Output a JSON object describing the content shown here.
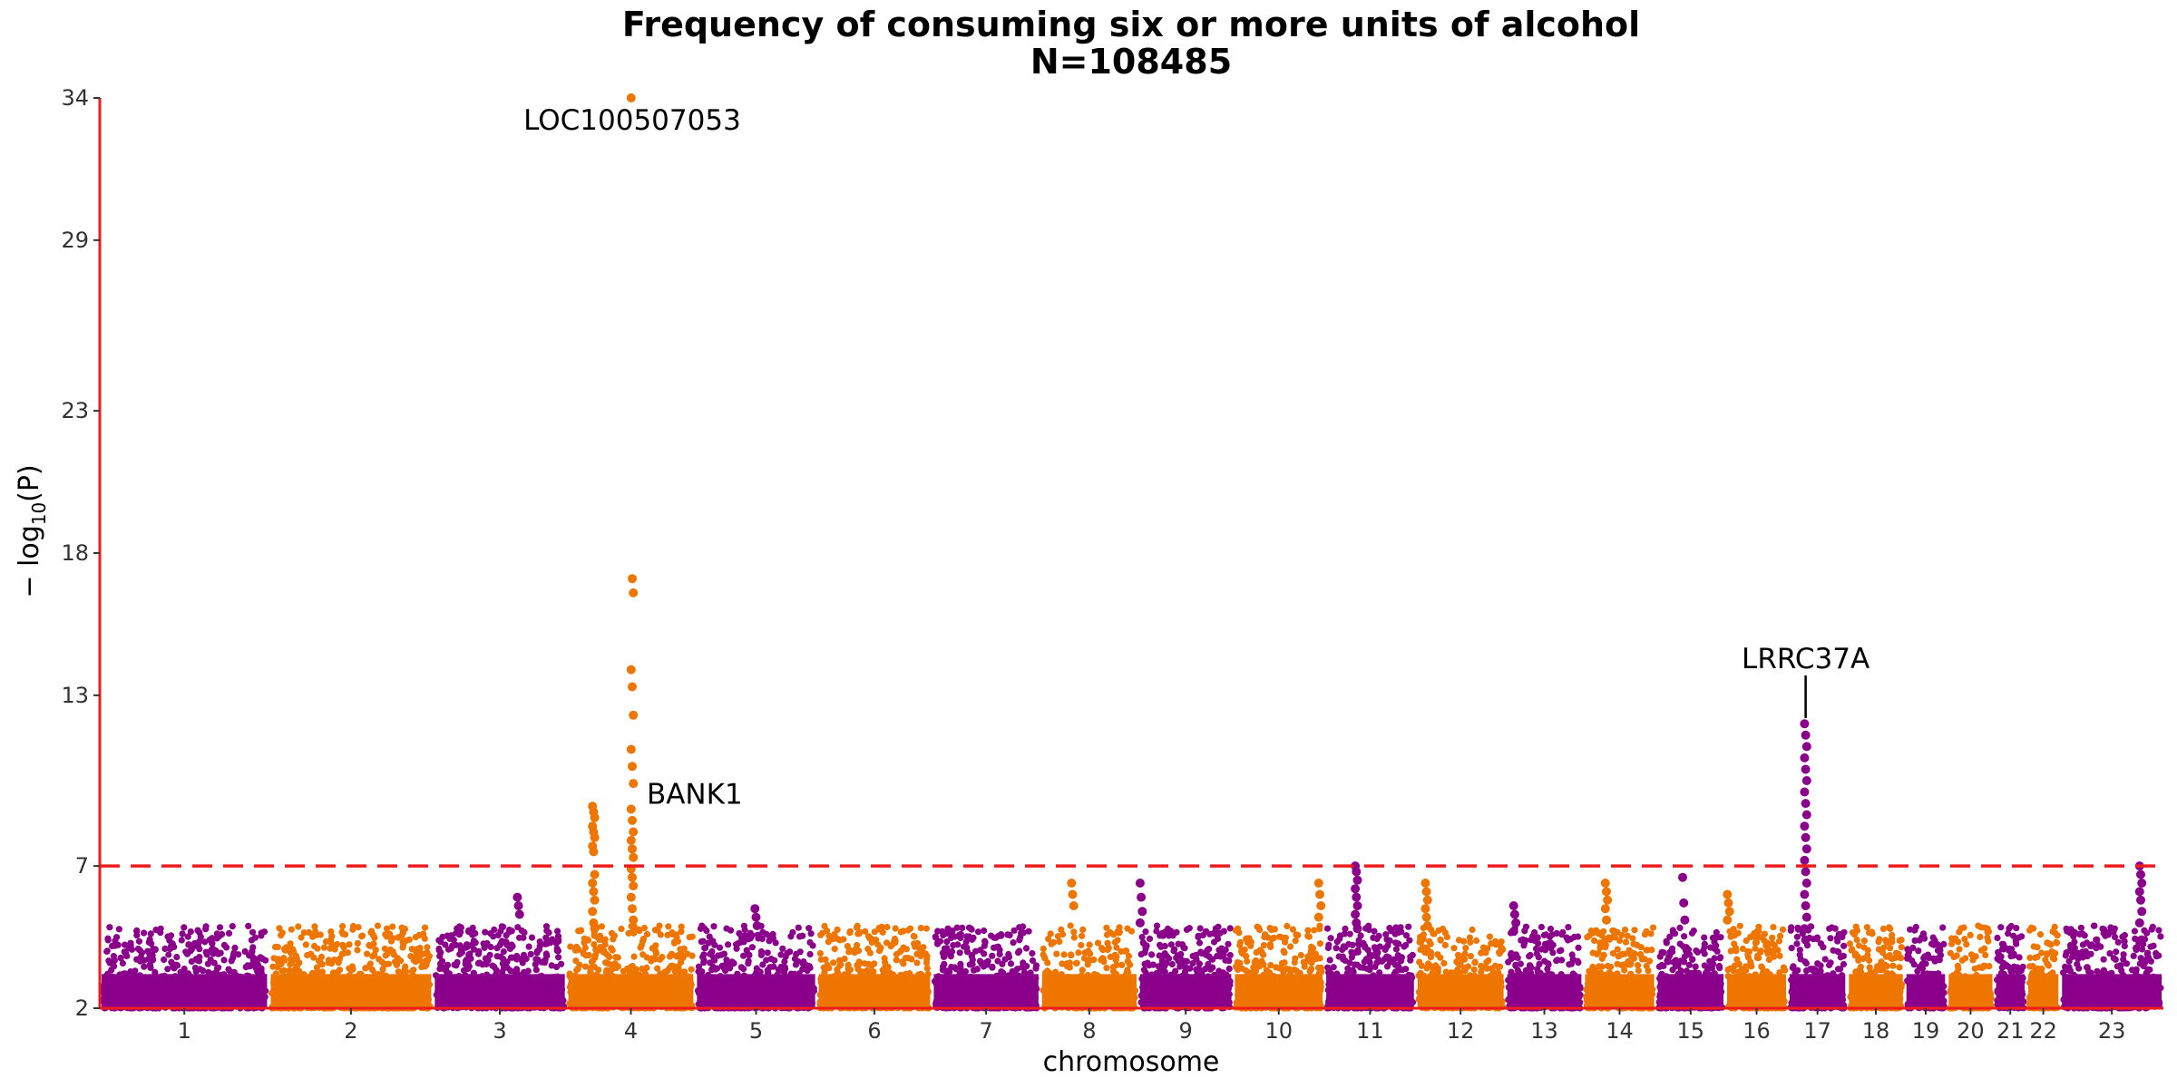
{
  "chart_data": {
    "type": "scatter",
    "subtype": "manhattan",
    "title": "Frequency of consuming six or more units of alcohol",
    "subtitle": "N=108485",
    "xlabel": "chromosome",
    "ylabel_prefix": "− log",
    "ylabel_sub": "10",
    "ylabel_suffix": "(P)",
    "ylim": [
      2,
      34
    ],
    "yticks": [
      2,
      7,
      13,
      18,
      23,
      29,
      34
    ],
    "threshold": 7,
    "grid": false,
    "colors": {
      "odd": "#8b008b",
      "even": "#ee7600",
      "threshold": "#ee1c1c",
      "axis": "#ee1c1c",
      "annotation": "#000000"
    },
    "chromosomes": [
      {
        "label": "1",
        "start": 0,
        "end": 1.0
      },
      {
        "label": "2",
        "start": 1.0,
        "end": 1.97
      },
      {
        "label": "3",
        "start": 1.97,
        "end": 2.76
      },
      {
        "label": "4",
        "start": 2.76,
        "end": 3.52
      },
      {
        "label": "5",
        "start": 3.52,
        "end": 4.24
      },
      {
        "label": "6",
        "start": 4.24,
        "end": 4.92
      },
      {
        "label": "7",
        "start": 4.92,
        "end": 5.56
      },
      {
        "label": "8",
        "start": 5.56,
        "end": 6.14
      },
      {
        "label": "9",
        "start": 6.14,
        "end": 6.7
      },
      {
        "label": "10",
        "start": 6.7,
        "end": 7.24
      },
      {
        "label": "11",
        "start": 7.24,
        "end": 7.78
      },
      {
        "label": "12",
        "start": 7.78,
        "end": 8.31
      },
      {
        "label": "13",
        "start": 8.31,
        "end": 8.77
      },
      {
        "label": "14",
        "start": 8.77,
        "end": 9.2
      },
      {
        "label": "15",
        "start": 9.2,
        "end": 9.61
      },
      {
        "label": "16",
        "start": 9.61,
        "end": 9.98
      },
      {
        "label": "17",
        "start": 9.98,
        "end": 10.33
      },
      {
        "label": "18",
        "start": 10.33,
        "end": 10.67
      },
      {
        "label": "19",
        "start": 10.67,
        "end": 10.92
      },
      {
        "label": "20",
        "start": 10.92,
        "end": 11.2
      },
      {
        "label": "21",
        "start": 11.2,
        "end": 11.39
      },
      {
        "label": "22",
        "start": 11.39,
        "end": 11.59
      },
      {
        "label": "23",
        "start": 11.59,
        "end": 12.2
      }
    ],
    "peaks": [
      {
        "chr": "4",
        "pos_frac": 0.51,
        "values": [
          34,
          17.1,
          16.6,
          13.9,
          13.3,
          12.3,
          11.1,
          10.5,
          9.9,
          9.0,
          8.6,
          8.2,
          7.9,
          7.6,
          7.3,
          6.9,
          6.6,
          6.3,
          5.9,
          5.5,
          5.1
        ]
      },
      {
        "chr": "4",
        "pos_frac": 0.21,
        "values": [
          9.1,
          8.9,
          8.7,
          8.4,
          8.2,
          8.0,
          7.7,
          7.5,
          6.7,
          6.4,
          6.1,
          5.8,
          5.4,
          5.0,
          4.8
        ]
      },
      {
        "chr": "17",
        "pos_frac": 0.3,
        "values": [
          12.0,
          11.6,
          11.2,
          10.8,
          10.4,
          10.0,
          9.6,
          9.2,
          8.8,
          8.4,
          8.0,
          7.6,
          7.2,
          6.8,
          6.4,
          6.0,
          5.6,
          5.2,
          4.8,
          4.4
        ]
      },
      {
        "chr": "11",
        "pos_frac": 0.35,
        "values": [
          7.0,
          6.8,
          6.5,
          6.2,
          5.9,
          5.6,
          5.3,
          5.0,
          4.8
        ]
      },
      {
        "chr": "12",
        "pos_frac": 0.12,
        "values": [
          6.4,
          6.1,
          5.8,
          5.5,
          5.2,
          4.9
        ]
      },
      {
        "chr": "23",
        "pos_frac": 0.78,
        "values": [
          7.0,
          6.7,
          6.4,
          6.1,
          5.8,
          5.4,
          5.0
        ]
      },
      {
        "chr": "16",
        "pos_frac": 0.05,
        "values": [
          6.0,
          5.7,
          5.4,
          5.1
        ]
      },
      {
        "chr": "14",
        "pos_frac": 0.32,
        "values": [
          6.4,
          6.1,
          5.8,
          5.5,
          5.1
        ]
      },
      {
        "chr": "13",
        "pos_frac": 0.12,
        "values": [
          5.6,
          5.3,
          5.0,
          4.7
        ]
      },
      {
        "chr": "10",
        "pos_frac": 0.95,
        "values": [
          6.4,
          6.0,
          5.6,
          5.2
        ]
      },
      {
        "chr": "9",
        "pos_frac": 0.03,
        "values": [
          6.4,
          5.9,
          5.4,
          5.0
        ]
      },
      {
        "chr": "8",
        "pos_frac": 0.33,
        "values": [
          6.4,
          6.0,
          5.6
        ]
      },
      {
        "chr": "3",
        "pos_frac": 0.64,
        "values": [
          5.9,
          5.6,
          5.3
        ]
      },
      {
        "chr": "5",
        "pos_frac": 0.5,
        "values": [
          5.5,
          5.2,
          4.9
        ]
      },
      {
        "chr": "15",
        "pos_frac": 0.4,
        "values": [
          6.6,
          5.7,
          5.1
        ]
      }
    ],
    "annotations": [
      {
        "text": "LOC100507053",
        "chr": "4",
        "pos_frac": 0.51,
        "y": 34,
        "anchor": "middle",
        "placement": "below",
        "leader": false
      },
      {
        "text": "BANK1",
        "chr": "4",
        "pos_frac": 0.51,
        "y": 9.5,
        "anchor": "start",
        "placement": "right",
        "leader": false
      },
      {
        "text": "LRRC37A",
        "chr": "17",
        "pos_frac": 0.3,
        "y": 12.2,
        "anchor": "middle",
        "placement": "above",
        "leader": true
      }
    ]
  }
}
